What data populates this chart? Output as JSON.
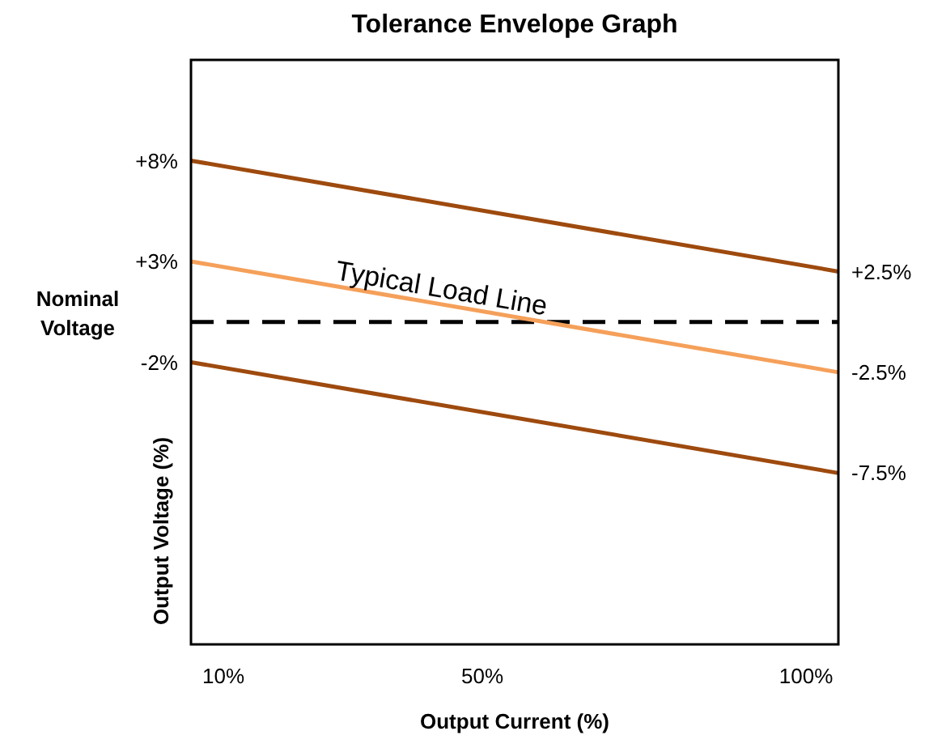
{
  "chart_data": {
    "type": "line",
    "title": "Tolerance Envelope Graph",
    "xlabel": "Output Current (%)",
    "ylabel": "Output Voltage (%)",
    "x": [
      5,
      105
    ],
    "xlim": [
      5,
      105
    ],
    "xticks": [
      {
        "value": 10,
        "label": "10%"
      },
      {
        "value": 50,
        "label": "50%"
      },
      {
        "value": 100,
        "label": "100%"
      }
    ],
    "ylim": [
      -16,
      13
    ],
    "yticks": [
      {
        "value": 8,
        "label": "+8%"
      },
      {
        "value": 3,
        "label": "+3%"
      },
      {
        "value": -2,
        "label": "-2%"
      }
    ],
    "y2lim": [
      -16,
      13
    ],
    "y2ticks": [
      {
        "value": 2.5,
        "label": "+2.5%"
      },
      {
        "value": -2.5,
        "label": "-2.5%"
      },
      {
        "value": -7.5,
        "label": "-7.5%"
      }
    ],
    "series": [
      {
        "color": "#9e4a0e",
        "values": [
          8,
          2.5
        ]
      },
      {
        "color": "#f5a05a",
        "values": [
          3,
          -2.5
        ]
      },
      {
        "color": "#9e4a0e",
        "values": [
          -2,
          -7.5
        ]
      }
    ],
    "ref_lines": [
      {
        "axis": "y",
        "value": 0,
        "label": "Nominal Voltage",
        "line_style": "dashed",
        "color": "#000000"
      }
    ],
    "annotations": [
      {
        "text": "Typical Load Line",
        "x": 27,
        "y": 1.8
      }
    ],
    "grid": false,
    "marker": "none",
    "line_style": "solid"
  }
}
